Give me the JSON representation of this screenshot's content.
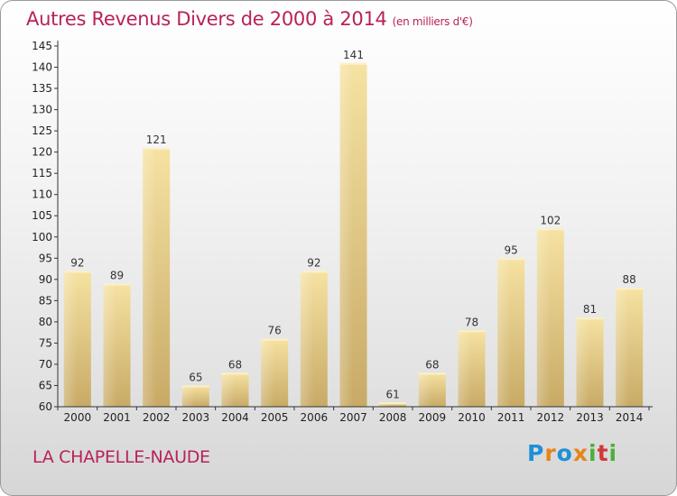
{
  "title": "Autres Revenus Divers de 2000 à 2014",
  "subtitle": "(en milliers d'€)",
  "location": "LA CHAPELLE-NAUDE",
  "logo": {
    "text": "Proxiti",
    "colors": [
      "#1e90d6",
      "#e8831a",
      "#1e90d6",
      "#e8831a",
      "#4caf3a",
      "#d03a3a",
      "#4caf3a"
    ]
  },
  "colors": {
    "title": "#b8225a",
    "bar_light": "#f6e2a2",
    "bar_dark": "#c8aa66"
  },
  "chart_data": {
    "type": "bar",
    "title": "Autres Revenus Divers de 2000 à 2014",
    "subtitle": "(en milliers d'€)",
    "categories": [
      "2000",
      "2001",
      "2002",
      "2003",
      "2004",
      "2005",
      "2006",
      "2007",
      "2008",
      "2009",
      "2010",
      "2011",
      "2012",
      "2013",
      "2014"
    ],
    "values": [
      92,
      89,
      121,
      65,
      68,
      76,
      92,
      141,
      61,
      68,
      78,
      95,
      102,
      81,
      88
    ],
    "ylim": [
      60,
      145
    ],
    "yticks": [
      60,
      65,
      70,
      75,
      80,
      85,
      90,
      95,
      100,
      105,
      110,
      115,
      120,
      125,
      130,
      135,
      140,
      145
    ],
    "grid": false,
    "legend": "none"
  }
}
